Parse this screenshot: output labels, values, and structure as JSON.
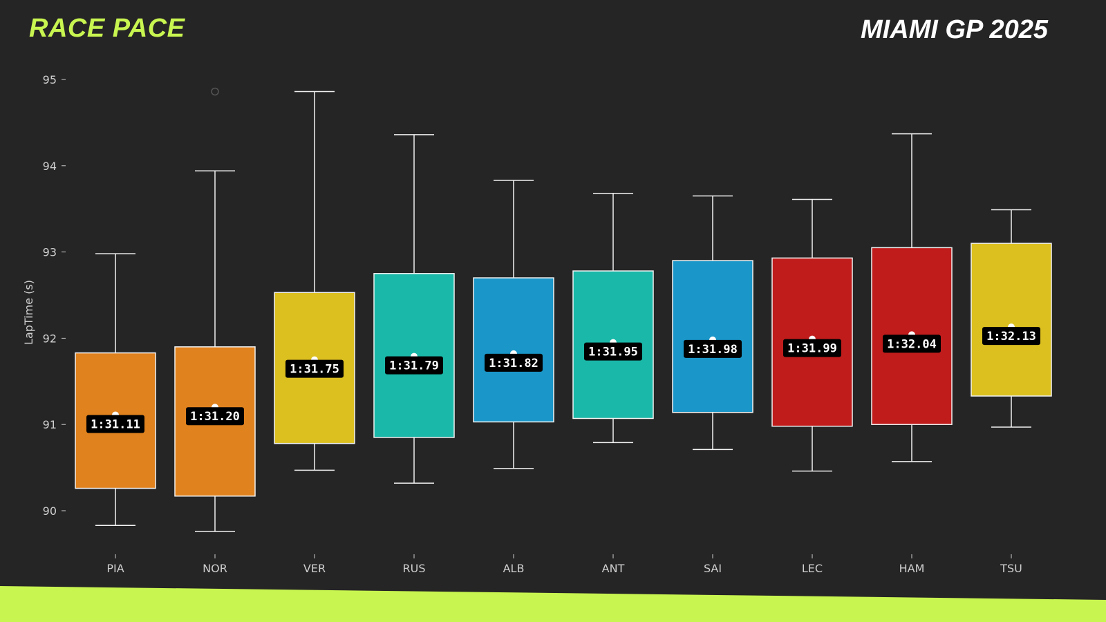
{
  "header": {
    "title": "RACE PACE",
    "subtitle": "MIAMI GP 2025"
  },
  "colors": {
    "title": "#c8f550",
    "background": "#262525",
    "stripe": "#c8f550"
  },
  "chart_data": {
    "type": "box",
    "ylabel": "LapTime (s)",
    "xlabel": "",
    "ylim": [
      89.6,
      95.3
    ],
    "yticks": [
      90,
      91,
      92,
      93,
      94,
      95
    ],
    "grid": false,
    "categories": [
      "PIA",
      "NOR",
      "VER",
      "RUS",
      "ALB",
      "ANT",
      "SAI",
      "LEC",
      "HAM",
      "TSU"
    ],
    "series": [
      {
        "driver": "PIA",
        "color": "#e0821e",
        "whisker_low": 89.83,
        "q1": 90.26,
        "q3": 91.83,
        "whisker_high": 92.98,
        "mean": 91.11,
        "label": "1:31.11",
        "outliers": []
      },
      {
        "driver": "NOR",
        "color": "#e0821e",
        "whisker_low": 89.76,
        "q1": 90.17,
        "q3": 91.9,
        "whisker_high": 93.94,
        "mean": 91.2,
        "label": "1:31.20",
        "outliers": [
          94.86
        ]
      },
      {
        "driver": "VER",
        "color": "#dcc020",
        "whisker_low": 90.47,
        "q1": 90.78,
        "q3": 92.53,
        "whisker_high": 94.86,
        "mean": 91.75,
        "label": "1:31.75",
        "outliers": []
      },
      {
        "driver": "RUS",
        "color": "#1ab8a8",
        "whisker_low": 90.32,
        "q1": 90.85,
        "q3": 92.75,
        "whisker_high": 94.36,
        "mean": 91.79,
        "label": "1:31.79",
        "outliers": []
      },
      {
        "driver": "ALB",
        "color": "#1a96c8",
        "whisker_low": 90.49,
        "q1": 91.03,
        "q3": 92.7,
        "whisker_high": 93.83,
        "mean": 91.82,
        "label": "1:31.82",
        "outliers": []
      },
      {
        "driver": "ANT",
        "color": "#1ab8a8",
        "whisker_low": 90.79,
        "q1": 91.07,
        "q3": 92.78,
        "whisker_high": 93.68,
        "mean": 91.95,
        "label": "1:31.95",
        "outliers": []
      },
      {
        "driver": "SAI",
        "color": "#1a96c8",
        "whisker_low": 90.71,
        "q1": 91.14,
        "q3": 92.9,
        "whisker_high": 93.65,
        "mean": 91.98,
        "label": "1:31.98",
        "outliers": []
      },
      {
        "driver": "LEC",
        "color": "#c01c1c",
        "whisker_low": 90.46,
        "q1": 90.98,
        "q3": 92.93,
        "whisker_high": 93.61,
        "mean": 91.99,
        "label": "1:31.99",
        "outliers": []
      },
      {
        "driver": "HAM",
        "color": "#c01c1c",
        "whisker_low": 90.57,
        "q1": 91.0,
        "q3": 93.05,
        "whisker_high": 94.37,
        "mean": 92.04,
        "label": "1:32.04",
        "outliers": []
      },
      {
        "driver": "TSU",
        "color": "#dcc020",
        "whisker_low": 90.97,
        "q1": 91.33,
        "q3": 93.1,
        "whisker_high": 93.49,
        "mean": 92.13,
        "label": "1:32.13",
        "outliers": []
      }
    ]
  }
}
